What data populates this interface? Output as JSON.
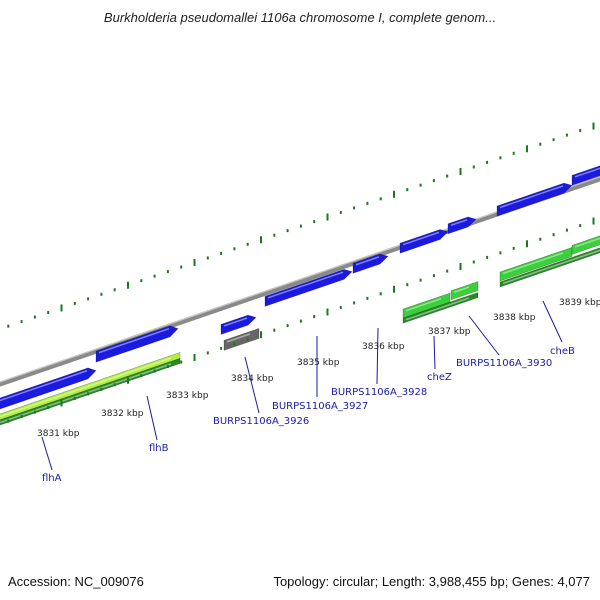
{
  "header": {
    "title": "Burkholderia pseudomallei 1106a chromosome I, complete genom..."
  },
  "footer": {
    "accession": "Accession: NC_009076",
    "summary": "Topology: circular; Length: 3,988,455 bp; Genes: 4,077"
  },
  "colors": {
    "backbone": "#8a8a8a",
    "cds_forward": "#1a1ae0",
    "cds_reverse_dark": "#2a8a2a",
    "cds_reverse_light": "#3ccf3c",
    "cds_reverse_lime": "#aef03c",
    "gc_tick": "#1a7a1a",
    "gray_feature": "#666666",
    "label_blue": "#1a1aa6"
  },
  "map": {
    "scale_ticks": [
      {
        "kbp": 3831,
        "label": "3831 kbp"
      },
      {
        "kbp": 3832,
        "label": "3832 kbp"
      },
      {
        "kbp": 3833,
        "label": "3833 kbp"
      },
      {
        "kbp": 3834,
        "label": "3834 kbp"
      },
      {
        "kbp": 3835,
        "label": "3835 kbp"
      },
      {
        "kbp": 3836,
        "label": "3836 kbp"
      },
      {
        "kbp": 3837,
        "label": "3837 kbp"
      },
      {
        "kbp": 3838,
        "label": "3838 kbp"
      },
      {
        "kbp": 3839,
        "label": "3839 kbp"
      }
    ],
    "genes": [
      {
        "name": "flhA",
        "label": "flhA"
      },
      {
        "name": "flhB",
        "label": "flhB"
      },
      {
        "name": "BURPS1106A_3926",
        "label": "BURPS1106A_3926"
      },
      {
        "name": "BURPS1106A_3927",
        "label": "BURPS1106A_3927"
      },
      {
        "name": "BURPS1106A_3928",
        "label": "BURPS1106A_3928"
      },
      {
        "name": "cheZ",
        "label": "cheZ"
      },
      {
        "name": "BURPS1106A_3930",
        "label": "BURPS1106A_3930"
      },
      {
        "name": "cheB",
        "label": "cheB"
      }
    ]
  }
}
